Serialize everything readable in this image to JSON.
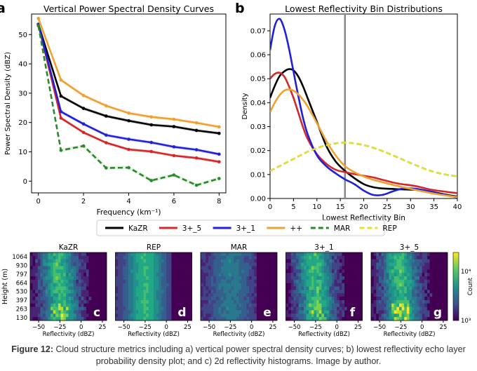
{
  "chart_data": [
    {
      "type": "line",
      "panel": "a",
      "title": "Vertical Power Spectral Density Curves",
      "xlabel": "Frequency (km⁻¹)",
      "ylabel": "Power Spectral Density (dBZ)",
      "xlim": [
        -0.3,
        8.3
      ],
      "ylim": [
        -4,
        57
      ],
      "xticks": [
        0,
        2,
        4,
        6,
        8
      ],
      "yticks": [
        0,
        10,
        20,
        30,
        40,
        50
      ],
      "grid": false,
      "x": [
        0,
        1,
        2,
        3,
        4,
        5,
        6,
        7,
        8
      ],
      "series": [
        {
          "name": "KaZR",
          "color": "#000000",
          "dash": "",
          "values": [
            53.5,
            29,
            24.8,
            22.2,
            20.6,
            19.2,
            18.6,
            17.3,
            16.3
          ]
        },
        {
          "name": "3+_5",
          "color": "#d62728",
          "dash": "",
          "values": [
            53.5,
            21.5,
            16.6,
            13.1,
            10.8,
            10.1,
            8.7,
            7.9,
            6.6
          ]
        },
        {
          "name": "3+_1",
          "color": "#1f1fdd",
          "dash": "",
          "values": [
            53.5,
            23.7,
            19.5,
            15.7,
            14.3,
            13.2,
            11.7,
            10.7,
            9.2
          ]
        },
        {
          "name": "++",
          "color": "#f0a030",
          "dash": "",
          "values": [
            55.5,
            34.5,
            29.2,
            25.7,
            23.2,
            21.9,
            21.1,
            19.9,
            18.5
          ]
        },
        {
          "name": "MAR",
          "color": "#2a8a2a",
          "dash": "7,4",
          "values": [
            53,
            10.5,
            12,
            4.5,
            4.6,
            0.2,
            2.1,
            -1.4,
            0.9
          ]
        }
      ]
    },
    {
      "type": "line",
      "panel": "b",
      "title": "Lowest Reflectivity Bin Distributions",
      "xlabel": "Lowest Reflectivity Bin",
      "ylabel": "Density",
      "xlim": [
        0,
        40
      ],
      "ylim": [
        0,
        0.077
      ],
      "xticks": [
        0,
        5,
        10,
        15,
        20,
        25,
        30,
        35,
        40
      ],
      "yticks": [
        0,
        0.01,
        0.02,
        0.03,
        0.04,
        0.05,
        0.06,
        0.07
      ],
      "vline": 16,
      "grid": false,
      "x": [
        0,
        1,
        2,
        3,
        4,
        5,
        6,
        7,
        8,
        10,
        12,
        14,
        16,
        18,
        20,
        22,
        24,
        26,
        28,
        30,
        32,
        34,
        36,
        38,
        40
      ],
      "series": [
        {
          "name": "KaZR",
          "color": "#000000",
          "dash": "",
          "values": [
            0.042,
            0.047,
            0.051,
            0.053,
            0.054,
            0.0535,
            0.051,
            0.047,
            0.042,
            0.032,
            0.022,
            0.0155,
            0.0115,
            0.0085,
            0.006,
            0.0047,
            0.0042,
            0.004,
            0.0038,
            0.0037,
            0.0035,
            0.003,
            0.0022,
            0.0014,
            0.0008
          ]
        },
        {
          "name": "3+_5",
          "color": "#d62728",
          "dash": "",
          "values": [
            0.05,
            0.052,
            0.0525,
            0.051,
            0.047,
            0.042,
            0.036,
            0.03,
            0.025,
            0.0185,
            0.0145,
            0.012,
            0.011,
            0.0102,
            0.0095,
            0.0088,
            0.0078,
            0.0068,
            0.006,
            0.0055,
            0.0048,
            0.0038,
            0.0032,
            0.0027,
            0.0022
          ]
        },
        {
          "name": "3+_1",
          "color": "#1f1fdd",
          "dash": "",
          "values": [
            0.062,
            0.072,
            0.075,
            0.071,
            0.063,
            0.053,
            0.043,
            0.034,
            0.027,
            0.018,
            0.0135,
            0.0105,
            0.008,
            0.006,
            0.0033,
            0.0015,
            0.0015,
            0.0028,
            0.004,
            0.0042,
            0.0038,
            0.003,
            0.002,
            0.0012,
            0.0005
          ]
        },
        {
          "name": "++",
          "color": "#f0a030",
          "dash": "",
          "values": [
            0.036,
            0.04,
            0.043,
            0.045,
            0.0455,
            0.045,
            0.0435,
            0.0413,
            0.0385,
            0.0315,
            0.024,
            0.018,
            0.0135,
            0.011,
            0.0092,
            0.0078,
            0.0068,
            0.0058,
            0.0049,
            0.004,
            0.0032,
            0.0024,
            0.0017,
            0.0011,
            0.0006
          ]
        },
        {
          "name": "MAR",
          "color": "#2a8a2a",
          "dash": "7,4",
          "values": [
            0.0115,
            0.0125,
            0.0135,
            0.0145,
            0.0155,
            0.0165,
            0.0175,
            0.0185,
            0.0195,
            0.021,
            0.0222,
            0.023,
            0.0233,
            0.023,
            0.0223,
            0.0212,
            0.0198,
            0.0182,
            0.0165,
            0.0148,
            0.0132,
            0.0117,
            0.0106,
            0.0098,
            0.0092
          ]
        },
        {
          "name": "REP",
          "color": "#e6e033",
          "dash": "7,4",
          "values": [
            0.0115,
            0.0125,
            0.0135,
            0.0145,
            0.0155,
            0.0165,
            0.0175,
            0.0185,
            0.0195,
            0.021,
            0.0222,
            0.023,
            0.0233,
            0.023,
            0.0223,
            0.0212,
            0.0198,
            0.0182,
            0.0165,
            0.0148,
            0.0132,
            0.0117,
            0.0106,
            0.0098,
            0.0092
          ]
        }
      ]
    },
    {
      "type": "heatmap",
      "panels": [
        {
          "title": "KaZR",
          "letter": "c",
          "style": "kazr"
        },
        {
          "title": "REP",
          "letter": "d",
          "style": "rep"
        },
        {
          "title": "MAR",
          "letter": "e",
          "style": "mar"
        },
        {
          "title": "3+_1",
          "letter": "f",
          "style": "f"
        },
        {
          "title": "3+_5",
          "letter": "g",
          "style": "g"
        }
      ],
      "ylabel": "Height (m)",
      "xlabel": "Reflectivity (dBZ)",
      "yticks": [
        "1064",
        "930",
        "797",
        "664",
        "530",
        "397",
        "263",
        "130"
      ],
      "xticks": [
        -50,
        -25,
        0,
        25
      ],
      "xlim": [
        -60,
        30
      ],
      "colorbar": {
        "label": "Count",
        "ticks": [
          "10⁴",
          "10³"
        ],
        "scale": "log"
      }
    }
  ],
  "panel_labels": {
    "a": "a",
    "b": "b"
  },
  "legend": [
    {
      "name": "KaZR",
      "color": "#000000",
      "dash": ""
    },
    {
      "name": "3+_5",
      "color": "#d62728",
      "dash": ""
    },
    {
      "name": "3+_1",
      "color": "#1f1fdd",
      "dash": ""
    },
    {
      "name": "++",
      "color": "#f0a030",
      "dash": ""
    },
    {
      "name": "MAR",
      "color": "#2a8a2a",
      "dash": "7,4"
    },
    {
      "name": "REP",
      "color": "#e6e033",
      "dash": "7,4"
    }
  ],
  "caption": {
    "label": "Figure 12:",
    "text": " Cloud structure metrics including a) vertical power spectral density curves; b) lowest reflectivity echo layer probability density plot; and c) 2d reflectivity histograms. Image by author."
  }
}
